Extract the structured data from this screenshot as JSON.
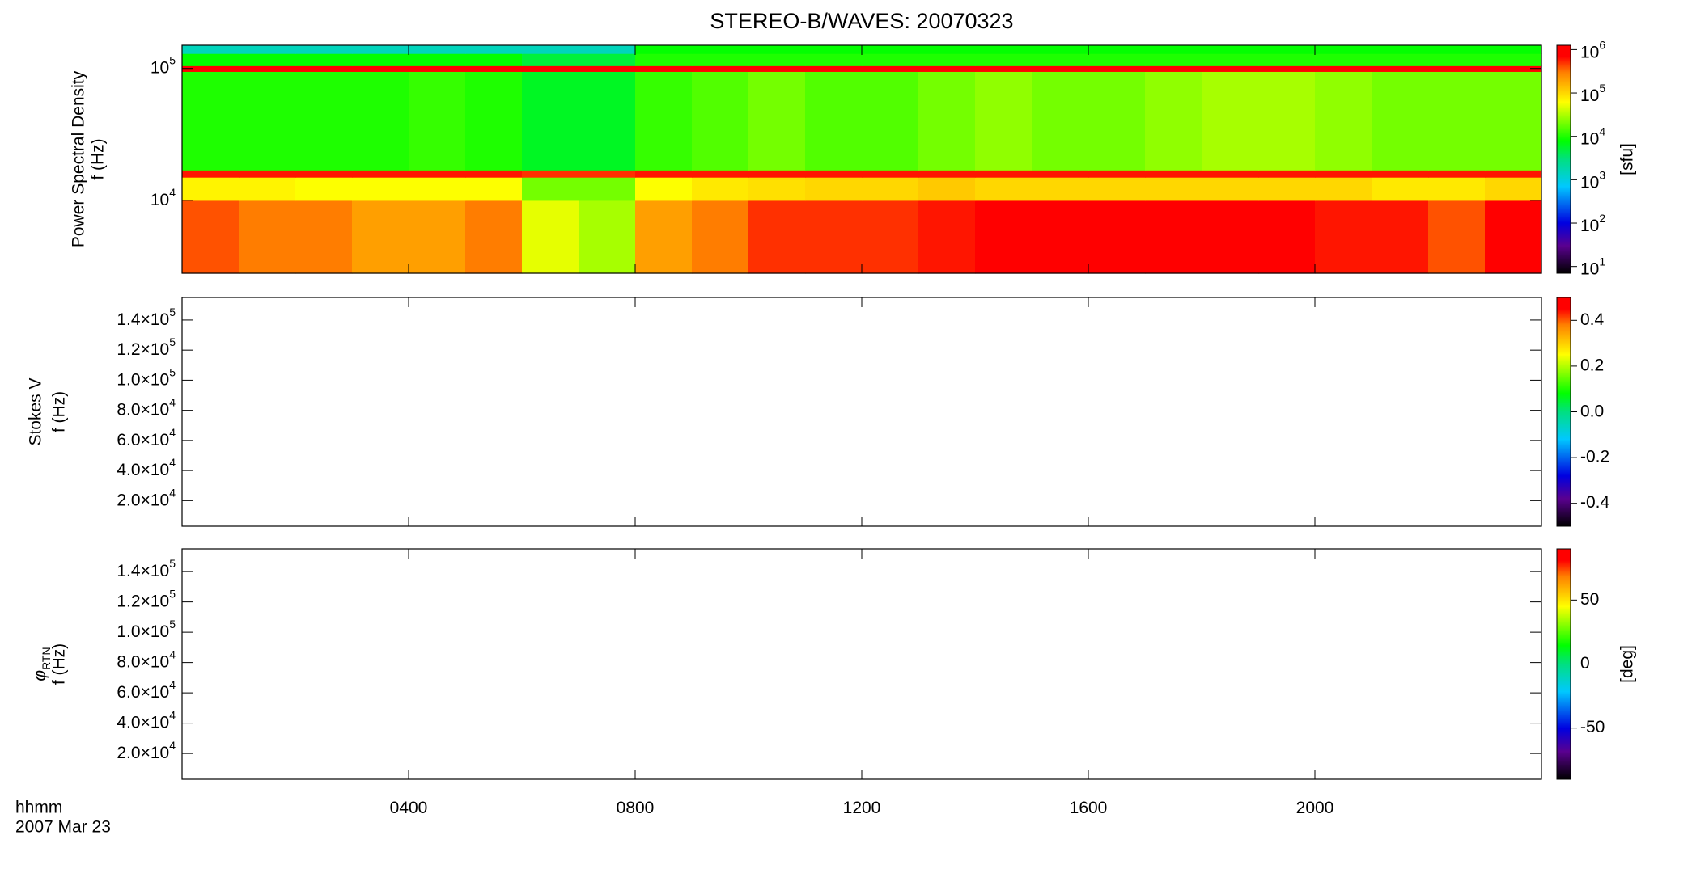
{
  "title": "STEREO-B/WAVES: 20070323",
  "footer": {
    "x_label": "hhmm",
    "date": "2007 Mar 23"
  },
  "chart_data": [
    {
      "type": "heatmap",
      "ylabel": "Power Spectral Density",
      "ylabel2": "f (Hz)",
      "log_y": true,
      "xlim": [
        0,
        24
      ],
      "xticks": [
        4,
        8,
        12,
        16,
        20
      ],
      "ylim": [
        2800,
        150000
      ],
      "yticks": [
        {
          "value": 10000,
          "label": "10",
          "exponent": "4"
        },
        {
          "value": 100000,
          "label": "10",
          "exponent": "5"
        }
      ],
      "x_edges": [
        0,
        1,
        2,
        3,
        4,
        5,
        6,
        7,
        8,
        9,
        10,
        11,
        12,
        13,
        14,
        15,
        16,
        17,
        18,
        19,
        20,
        21,
        22,
        23,
        24
      ],
      "y_edges": [
        2800,
        10000,
        15000,
        17000,
        95000,
        105000,
        130000,
        150000
      ],
      "z": [
        [
          400000.0,
          300000.0,
          300000.0,
          200000.0,
          200000.0,
          300000.0,
          50000.0,
          30000.0,
          200000.0,
          300000.0,
          500000.0,
          500000.0,
          500000.0,
          600000.0,
          800000.0,
          800000.0,
          800000.0,
          800000.0,
          800000.0,
          800000.0,
          600000.0,
          600000.0,
          400000.0,
          800000.0
        ],
        [
          70000.0,
          70000.0,
          60000.0,
          60000.0,
          60000.0,
          60000.0,
          20000.0,
          20000.0,
          60000.0,
          80000.0,
          90000.0,
          100000.0,
          100000.0,
          120000.0,
          100000.0,
          100000.0,
          100000.0,
          100000.0,
          100000.0,
          100000.0,
          100000.0,
          80000.0,
          80000.0,
          100000.0
        ],
        [
          600000.0,
          600000.0,
          600000.0,
          600000.0,
          600000.0,
          600000.0,
          500000.0,
          500000.0,
          600000.0,
          600000.0,
          600000.0,
          600000.0,
          600000.0,
          600000.0,
          600000.0,
          600000.0,
          600000.0,
          600000.0,
          600000.0,
          600000.0,
          600000.0,
          600000.0,
          600000.0,
          600000.0
        ],
        [
          10000.0,
          10000.0,
          10000.0,
          10000.0,
          12000.0,
          10000.0,
          6000.0,
          6000.0,
          12000.0,
          15000.0,
          20000.0,
          15000.0,
          15000.0,
          20000.0,
          25000.0,
          20000.0,
          20000.0,
          25000.0,
          30000.0,
          30000.0,
          25000.0,
          20000.0,
          20000.0,
          20000.0
        ],
        [
          700000.0,
          700000.0,
          700000.0,
          700000.0,
          700000.0,
          700000.0,
          700000.0,
          700000.0,
          700000.0,
          700000.0,
          700000.0,
          700000.0,
          700000.0,
          700000.0,
          700000.0,
          700000.0,
          700000.0,
          700000.0,
          700000.0,
          700000.0,
          700000.0,
          700000.0,
          700000.0,
          700000.0
        ],
        [
          8000.0,
          8000.0,
          8000.0,
          8000.0,
          8000.0,
          8000.0,
          5000.0,
          5000.0,
          10000.0,
          10000.0,
          10000.0,
          10000.0,
          10000.0,
          10000.0,
          10000.0,
          10000.0,
          10000.0,
          10000.0,
          10000.0,
          10000.0,
          10000.0,
          10000.0,
          10000.0,
          10000.0
        ],
        [
          1500.0,
          1500.0,
          1500.0,
          1500.0,
          1500.0,
          1500.0,
          1500.0,
          1500.0,
          8000.0,
          8000.0,
          8000.0,
          8000.0,
          8000.0,
          8000.0,
          8000.0,
          8000.0,
          8000.0,
          8000.0,
          8000.0,
          8000.0,
          8000.0,
          8000.0,
          8000.0,
          8000.0
        ]
      ],
      "clim": [
        7,
        1260000
      ],
      "clog": true,
      "clabel": "[sfu]",
      "cticks": [
        {
          "value": 10,
          "label": "10",
          "exponent": "1"
        },
        {
          "value": 100,
          "label": "10",
          "exponent": "2"
        },
        {
          "value": 1000,
          "label": "10",
          "exponent": "3"
        },
        {
          "value": 10000,
          "label": "10",
          "exponent": "4"
        },
        {
          "value": 100000,
          "label": "10",
          "exponent": "5"
        },
        {
          "value": 1000000,
          "label": "10",
          "exponent": "6"
        }
      ]
    },
    {
      "type": "heatmap",
      "ylabel": "Stokes V",
      "ylabel2": "f (Hz)",
      "xlim": [
        0,
        24
      ],
      "xticks": [
        4,
        8,
        12,
        16,
        20
      ],
      "ylim": [
        3000,
        155000
      ],
      "yticks": [
        {
          "value": 20000,
          "label": "2.0×10",
          "exponent": "4"
        },
        {
          "value": 40000,
          "label": "4.0×10",
          "exponent": "4"
        },
        {
          "value": 60000,
          "label": "6.0×10",
          "exponent": "4"
        },
        {
          "value": 80000,
          "label": "8.0×10",
          "exponent": "4"
        },
        {
          "value": 100000,
          "label": "1.0×10",
          "exponent": "5"
        },
        {
          "value": 120000,
          "label": "1.2×10",
          "exponent": "5"
        },
        {
          "value": 140000,
          "label": "1.4×10",
          "exponent": "5"
        }
      ],
      "clim": [
        -0.5,
        0.5
      ],
      "cticks": [
        -0.4,
        -0.2,
        {
          "value": 0,
          "label": "0.0"
        },
        0.2,
        0.4
      ]
    },
    {
      "type": "heatmap",
      "ylabel": "φ",
      "ylabel_sub": "RTN",
      "ylabel2": "f (Hz)",
      "xlim": [
        0,
        24
      ],
      "xticks": [
        {
          "value": 4,
          "label": "0400"
        },
        {
          "value": 8,
          "label": "0800"
        },
        {
          "value": 12,
          "label": "1200"
        },
        {
          "value": 16,
          "label": "1600"
        },
        {
          "value": 20,
          "label": "2000"
        }
      ],
      "ylim": [
        3000,
        155000
      ],
      "yticks": [
        {
          "value": 20000,
          "label": "2.0×10",
          "exponent": "4"
        },
        {
          "value": 40000,
          "label": "4.0×10",
          "exponent": "4"
        },
        {
          "value": 60000,
          "label": "6.0×10",
          "exponent": "4"
        },
        {
          "value": 80000,
          "label": "8.0×10",
          "exponent": "4"
        },
        {
          "value": 100000,
          "label": "1.0×10",
          "exponent": "5"
        },
        {
          "value": 120000,
          "label": "1.2×10",
          "exponent": "5"
        },
        {
          "value": 140000,
          "label": "1.4×10",
          "exponent": "5"
        }
      ],
      "clim": [
        -90,
        90
      ],
      "clabel": "[deg]",
      "cticks": [
        -50,
        0,
        50
      ]
    }
  ]
}
